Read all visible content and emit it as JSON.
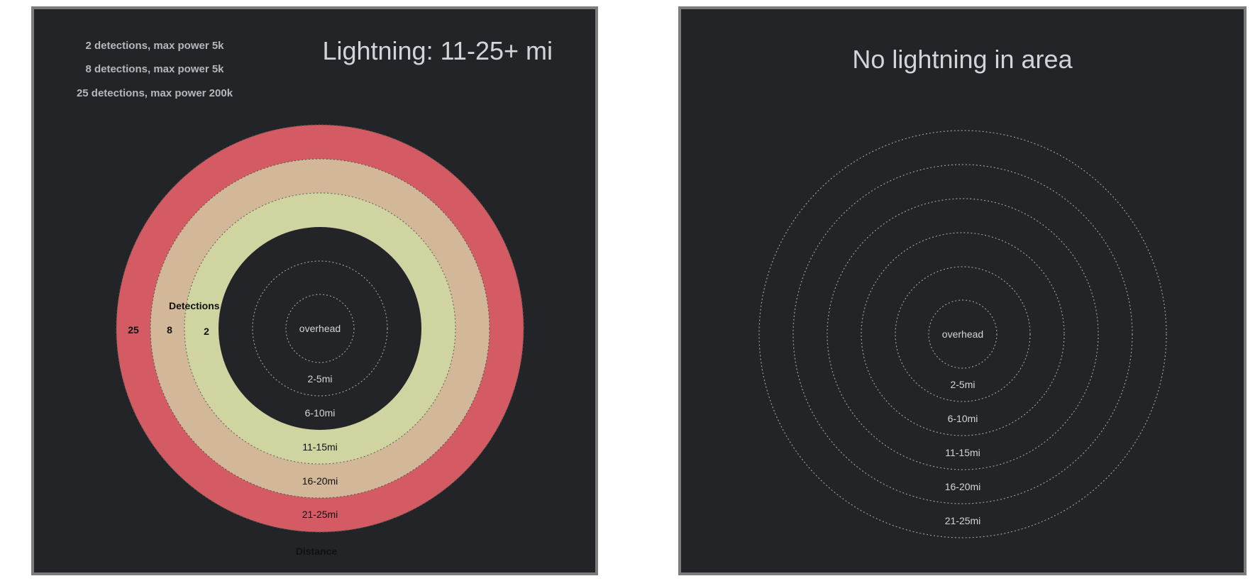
{
  "colors": {
    "panel_bg": "#232427",
    "panel_border": "#7c7c7c",
    "band_21_25": "#d45b63",
    "band_16_20": "#d2b899",
    "band_11_15": "#d0d4a1",
    "ring_dots_light": "#9a9ca1",
    "ring_dots_dark": "#5a5c52",
    "text_light": "#d2d4d9",
    "text_dark": "#111111"
  },
  "left_panel": {
    "title": "Lightning: 11-25+ mi",
    "legend": [
      "2 detections, max power 5k",
      "8 detections, max power 5k",
      "25 detections, max power 200k"
    ],
    "detections_label": "Detections",
    "distance_label": "Distance",
    "detection_values": [
      "25",
      "8",
      "2"
    ],
    "ring_labels": [
      "overhead",
      "2-5mi",
      "6-10mi",
      "11-15mi",
      "16-20mi",
      "21-25mi"
    ]
  },
  "right_panel": {
    "title": "No lightning in area",
    "ring_labels": [
      "overhead",
      "2-5mi",
      "6-10mi",
      "11-15mi",
      "16-20mi",
      "21-25mi"
    ]
  }
}
